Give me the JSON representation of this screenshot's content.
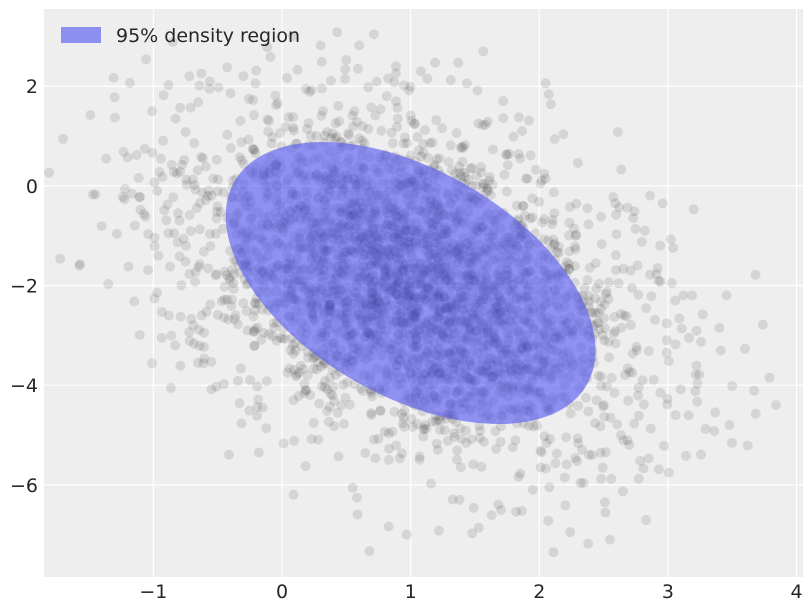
{
  "chart_data": {
    "type": "scatter",
    "title": "",
    "xlabel": "",
    "ylabel": "",
    "xlim": [
      -1.85,
      4.05
    ],
    "ylim": [
      -7.85,
      3.55
    ],
    "grid": true,
    "x_ticks": [
      -1,
      0,
      1,
      2,
      3,
      4
    ],
    "y_ticks": [
      -6,
      -4,
      -2,
      0,
      2
    ],
    "x_tick_labels": [
      "−1",
      "0",
      "1",
      "2",
      "3",
      "4"
    ],
    "y_tick_labels": [
      "−6",
      "−4",
      "−2",
      "0",
      "2"
    ],
    "legend": {
      "position": "top-left",
      "entries": [
        {
          "label": "95% density region",
          "color": "#8c8ef0"
        }
      ]
    },
    "density_region": {
      "label": "95% density region",
      "center": [
        1.0,
        -1.95
      ],
      "boundary_extent_x": [
        -0.7,
        2.7
      ],
      "boundary_extent_y": [
        -5.6,
        1.7
      ],
      "color": "#5b5ff0",
      "opacity": 0.65
    },
    "series": [
      {
        "type": "scatter",
        "marker_color": "#000000",
        "marker_opacity": 0.1,
        "distribution": {
          "count": 3000,
          "mean": [
            1.0,
            -1.95
          ],
          "std": [
            0.85,
            1.65
          ],
          "correlation": -0.38
        },
        "points": [
          [
            -1.57,
            -1.57
          ],
          [
            -1.35,
            -1.97
          ],
          [
            -1.49,
            1.42
          ],
          [
            -1.45,
            -0.17
          ],
          [
            -1.01,
            -3.56
          ],
          [
            -0.79,
            -3.61
          ],
          [
            -1.22,
            -0.06
          ],
          [
            -1.2,
            0.57
          ],
          [
            -1.13,
            0.62
          ],
          [
            -1.01,
            1.5
          ],
          [
            -0.92,
            1.82
          ],
          [
            -0.85,
            2.89
          ],
          [
            -0.72,
            2.2
          ],
          [
            -0.3,
            2.2
          ],
          [
            0.12,
            2.33
          ],
          [
            0.31,
            2.49
          ],
          [
            0.5,
            2.53
          ],
          [
            0.6,
            2.82
          ],
          [
            0.3,
            2.82
          ],
          [
            1.19,
            2.47
          ],
          [
            1.37,
            2.47
          ],
          [
            1.08,
            2.3
          ],
          [
            1.56,
            1.22
          ],
          [
            1.84,
            0.64
          ],
          [
            2.05,
            2.06
          ],
          [
            2.09,
            1.64
          ],
          [
            2.12,
            0.94
          ],
          [
            2.3,
            0.46
          ],
          [
            2.59,
            -0.35
          ],
          [
            2.74,
            -0.51
          ],
          [
            2.92,
            -1.65
          ],
          [
            3.03,
            -1.95
          ],
          [
            3.12,
            -2.2
          ],
          [
            3.2,
            -0.47
          ],
          [
            3.09,
            -2.66
          ],
          [
            3.06,
            -3.18
          ],
          [
            3.27,
            -2.58
          ],
          [
            3.4,
            -2.85
          ],
          [
            3.5,
            -4.02
          ],
          [
            3.67,
            -4.11
          ],
          [
            3.79,
            -3.85
          ],
          [
            3.84,
            -4.4
          ],
          [
            3.36,
            -4.92
          ],
          [
            3.62,
            -5.21
          ],
          [
            3.14,
            -5.42
          ],
          [
            2.85,
            -5.47
          ],
          [
            2.48,
            -5.88
          ],
          [
            2.51,
            -6.35
          ],
          [
            2.55,
            -7.1
          ],
          [
            2.38,
            -7.18
          ],
          [
            2.24,
            -6.95
          ],
          [
            2.11,
            -7.35
          ],
          [
            2.07,
            -6.72
          ],
          [
            1.82,
            -6.54
          ],
          [
            1.53,
            -6.86
          ],
          [
            1.22,
            -6.92
          ],
          [
            0.97,
            -7.0
          ],
          [
            0.68,
            -7.33
          ],
          [
            0.83,
            -5.5
          ],
          [
            0.09,
            -6.2
          ],
          [
            -0.18,
            -5.35
          ],
          [
            -0.51,
            -4.03
          ],
          [
            -0.61,
            -3.56
          ],
          [
            -0.83,
            -3.2
          ],
          [
            0.55,
            -6.06
          ],
          [
            1.63,
            -6.61
          ],
          [
            2.65,
            -6.13
          ],
          [
            2.93,
            -5.69
          ],
          [
            3.06,
            -4.6
          ],
          [
            3.23,
            -3.97
          ],
          [
            2.89,
            -3.89
          ],
          [
            2.99,
            -3.35
          ],
          [
            2.72,
            -2.05
          ],
          [
            2.94,
            -1.2
          ],
          [
            2.82,
            -0.9
          ],
          [
            2.48,
            -0.62
          ],
          [
            2.6,
            -0.97
          ],
          [
            -0.99,
            -1.21
          ],
          [
            -1.1,
            -0.48
          ],
          [
            -0.93,
            0.18
          ],
          [
            -0.71,
            1.57
          ],
          [
            -0.4,
            1.86
          ],
          [
            -0.05,
            1.81
          ],
          [
            0.23,
            1.92
          ],
          [
            0.67,
            1.98
          ],
          [
            1.52,
            1.92
          ],
          [
            1.92,
            1.31
          ],
          [
            -0.69,
            -2.8
          ],
          [
            -0.33,
            -4.36
          ],
          [
            -0.15,
            -4.45
          ],
          [
            0.23,
            -5.08
          ],
          [
            0.44,
            -5.43
          ],
          [
            1.38,
            -6.3
          ],
          [
            1.95,
            -6.1
          ],
          [
            2.32,
            -5.96
          ],
          [
            2.7,
            -5.2
          ],
          [
            -0.87,
            -1.62
          ],
          [
            -0.76,
            0.52
          ],
          [
            0.38,
            2.11
          ],
          [
            1.72,
            1.36
          ]
        ]
      }
    ]
  }
}
